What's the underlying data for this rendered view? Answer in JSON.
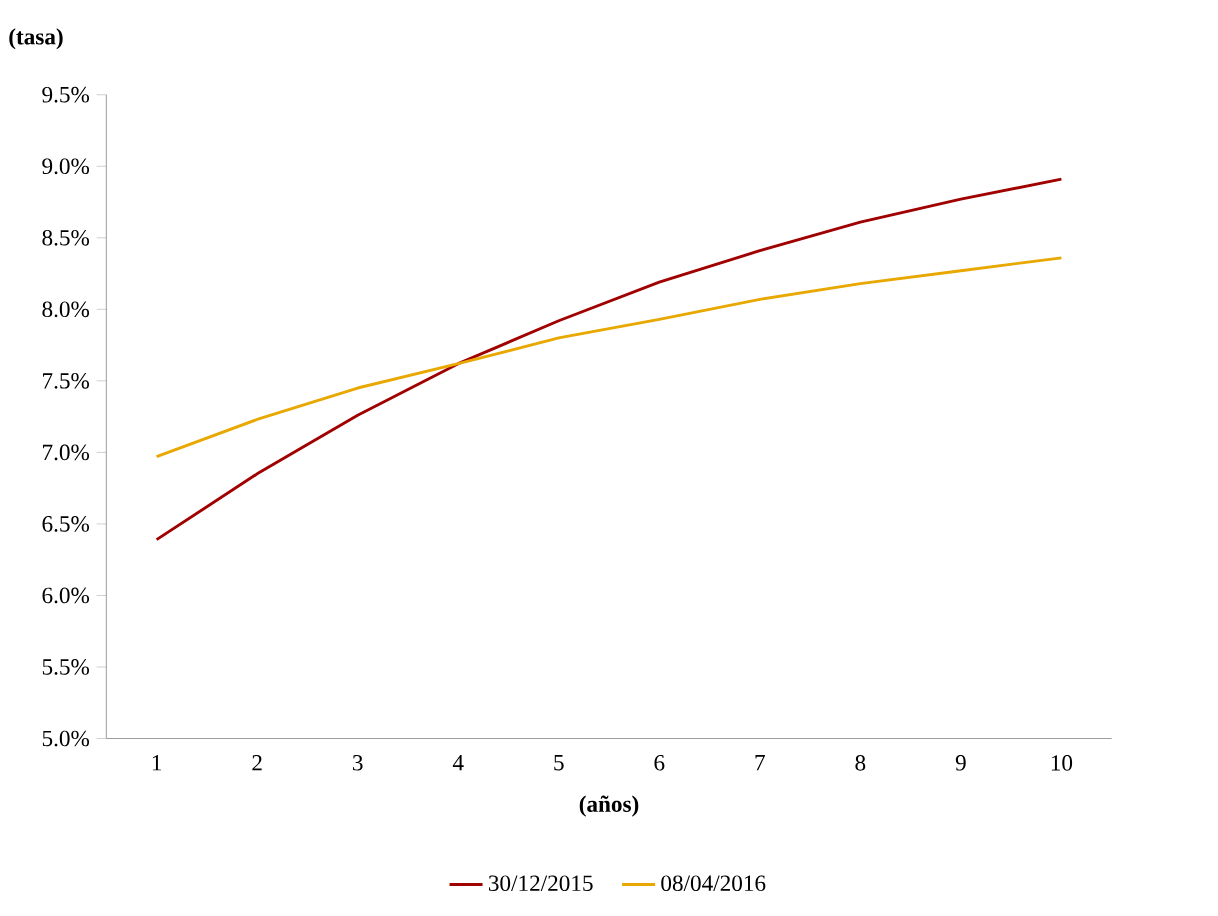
{
  "chart_data": {
    "type": "line",
    "xlabel": "(años)",
    "ylabel": "(tasa)",
    "categories": [
      "1",
      "2",
      "3",
      "4",
      "5",
      "6",
      "7",
      "8",
      "9",
      "10"
    ],
    "series": [
      {
        "name": "30/12/2015",
        "color": "#a00000",
        "values": [
          6.39,
          6.85,
          7.26,
          7.62,
          7.92,
          8.19,
          8.41,
          8.61,
          8.77,
          8.91
        ]
      },
      {
        "name": "08/04/2016",
        "color": "#e8a800",
        "values": [
          6.97,
          7.23,
          7.45,
          7.62,
          7.8,
          7.93,
          8.07,
          8.18,
          8.27,
          8.36
        ]
      }
    ],
    "ylim": [
      5,
      9.5
    ],
    "yticks": [
      {
        "value": 5,
        "label": "5.0%"
      },
      {
        "value": 5.5,
        "label": "5.5%"
      },
      {
        "value": 6,
        "label": "6.0%"
      },
      {
        "value": 6.5,
        "label": "6.5%"
      },
      {
        "value": 7,
        "label": "7.0%"
      },
      {
        "value": 7.5,
        "label": "7.5%"
      },
      {
        "value": 8,
        "label": "8.0%"
      },
      {
        "value": 8.5,
        "label": "8.5%"
      },
      {
        "value": 9,
        "label": "9.0%"
      },
      {
        "value": 9.5,
        "label": "9.5%"
      }
    ],
    "grid": false,
    "legend": "bottom",
    "marker": "none",
    "line_style": "solid"
  }
}
